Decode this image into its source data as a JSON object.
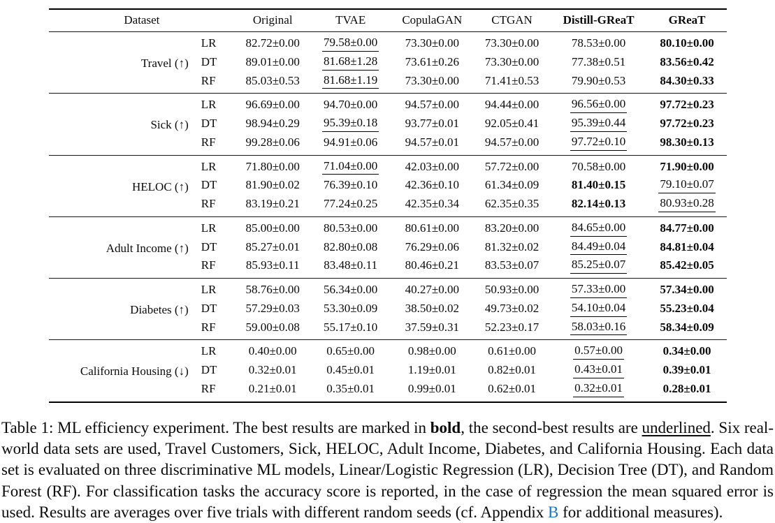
{
  "page": {
    "background": "#ffffff",
    "text_color": "#0a0a0a",
    "link_color": "#1874cd"
  },
  "table": {
    "header": {
      "dataset_label": "Dataset",
      "method_columns": [
        {
          "label": "Original",
          "bold": false
        },
        {
          "label": "TVAE",
          "bold": false
        },
        {
          "label": "CopulaGAN",
          "bold": false
        },
        {
          "label": "CTGAN",
          "bold": false
        },
        {
          "label": "Distill-GReaT",
          "bold": true
        },
        {
          "label": "GReaT",
          "bold": true
        }
      ]
    },
    "groups": [
      {
        "dataset": "Travel (↑)",
        "rows": [
          {
            "model": "LR",
            "values": [
              [
                "82.72±0.00",
                ""
              ],
              [
                "79.58±0.00",
                "u"
              ],
              [
                "73.30±0.00",
                ""
              ],
              [
                "73.30±0.00",
                ""
              ],
              [
                "78.53±0.00",
                ""
              ],
              [
                "80.10±0.00",
                "b"
              ]
            ]
          },
          {
            "model": "DT",
            "values": [
              [
                "89.01±0.00",
                ""
              ],
              [
                "81.68±1.28",
                "u"
              ],
              [
                "73.61±0.26",
                ""
              ],
              [
                "73.30±0.00",
                ""
              ],
              [
                "77.38±0.51",
                ""
              ],
              [
                "83.56±0.42",
                "b"
              ]
            ]
          },
          {
            "model": "RF",
            "values": [
              [
                "85.03±0.53",
                ""
              ],
              [
                "81.68±1.19",
                "u"
              ],
              [
                "73.30±0.00",
                ""
              ],
              [
                "71.41±0.53",
                ""
              ],
              [
                "79.90±0.53",
                ""
              ],
              [
                "84.30±0.33",
                "b"
              ]
            ]
          }
        ]
      },
      {
        "dataset": "Sick (↑)",
        "rows": [
          {
            "model": "LR",
            "values": [
              [
                "96.69±0.00",
                ""
              ],
              [
                "94.70±0.00",
                ""
              ],
              [
                "94.57±0.00",
                ""
              ],
              [
                "94.44±0.00",
                ""
              ],
              [
                "96.56±0.00",
                "u"
              ],
              [
                "97.72±0.23",
                "b"
              ]
            ]
          },
          {
            "model": "DT",
            "values": [
              [
                "98.94±0.29",
                ""
              ],
              [
                "95.39±0.18",
                "u"
              ],
              [
                "93.77±0.01",
                ""
              ],
              [
                "92.05±0.41",
                ""
              ],
              [
                "95.39±0.44",
                "u"
              ],
              [
                "97.72±0.23",
                "b"
              ]
            ]
          },
          {
            "model": "RF",
            "values": [
              [
                "99.28±0.06",
                ""
              ],
              [
                "94.91±0.06",
                ""
              ],
              [
                "94.57±0.01",
                ""
              ],
              [
                "94.57±0.00",
                ""
              ],
              [
                "97.72±0.10",
                "u"
              ],
              [
                "98.30±0.13",
                "b"
              ]
            ]
          }
        ]
      },
      {
        "dataset": "HELOC (↑)",
        "rows": [
          {
            "model": "LR",
            "values": [
              [
                "71.80±0.00",
                ""
              ],
              [
                "71.04±0.00",
                "u"
              ],
              [
                "42.03±0.00",
                ""
              ],
              [
                "57.72±0.00",
                ""
              ],
              [
                "70.58±0.00",
                ""
              ],
              [
                "71.90±0.00",
                "b"
              ]
            ]
          },
          {
            "model": "DT",
            "values": [
              [
                "81.90±0.02",
                ""
              ],
              [
                "76.39±0.10",
                ""
              ],
              [
                "42.36±0.10",
                ""
              ],
              [
                "61.34±0.09",
                ""
              ],
              [
                "81.40±0.15",
                "b"
              ],
              [
                "79.10±0.07",
                "u"
              ]
            ]
          },
          {
            "model": "RF",
            "values": [
              [
                "83.19±0.21",
                ""
              ],
              [
                "77.24±0.25",
                ""
              ],
              [
                "42.35±0.34",
                ""
              ],
              [
                "62.35±0.35",
                ""
              ],
              [
                "82.14±0.13",
                "b"
              ],
              [
                "80.93±0.28",
                "u"
              ]
            ]
          }
        ]
      },
      {
        "dataset": "Adult Income (↑)",
        "rows": [
          {
            "model": "LR",
            "values": [
              [
                "85.00±0.00",
                ""
              ],
              [
                "80.53±0.00",
                ""
              ],
              [
                "80.61±0.00",
                ""
              ],
              [
                "83.20±0.00",
                ""
              ],
              [
                "84.65±0.00",
                "u"
              ],
              [
                "84.77±0.00",
                "b"
              ]
            ]
          },
          {
            "model": "DT",
            "values": [
              [
                "85.27±0.01",
                ""
              ],
              [
                "82.80±0.08",
                ""
              ],
              [
                "76.29±0.06",
                ""
              ],
              [
                "81.32±0.02",
                ""
              ],
              [
                "84.49±0.04",
                "u"
              ],
              [
                "84.81±0.04",
                "b"
              ]
            ]
          },
          {
            "model": "RF",
            "values": [
              [
                "85.93±0.11",
                ""
              ],
              [
                "83.48±0.11",
                ""
              ],
              [
                "80.46±0.21",
                ""
              ],
              [
                "83.53±0.07",
                ""
              ],
              [
                "85.25±0.07",
                "u"
              ],
              [
                "85.42±0.05",
                "b"
              ]
            ]
          }
        ]
      },
      {
        "dataset": "Diabetes (↑)",
        "rows": [
          {
            "model": "LR",
            "values": [
              [
                "58.76±0.00",
                ""
              ],
              [
                "56.34±0.00",
                ""
              ],
              [
                "40.27±0.00",
                ""
              ],
              [
                "50.93±0.00",
                ""
              ],
              [
                "57.33±0.00",
                "u"
              ],
              [
                "57.34±0.00",
                "b"
              ]
            ]
          },
          {
            "model": "DT",
            "values": [
              [
                "57.29±0.03",
                ""
              ],
              [
                "53.30±0.09",
                ""
              ],
              [
                "38.50±0.02",
                ""
              ],
              [
                "49.73±0.02",
                ""
              ],
              [
                "54.10±0.04",
                "u"
              ],
              [
                "55.23±0.04",
                "b"
              ]
            ]
          },
          {
            "model": "RF",
            "values": [
              [
                "59.00±0.08",
                ""
              ],
              [
                "55.17±0.10",
                ""
              ],
              [
                "37.59±0.31",
                ""
              ],
              [
                "52.23±0.17",
                ""
              ],
              [
                "58.03±0.16",
                "u"
              ],
              [
                "58.34±0.09",
                "b"
              ]
            ]
          }
        ]
      },
      {
        "dataset": "California Housing (↓)",
        "rows": [
          {
            "model": "LR",
            "values": [
              [
                "0.40±0.00",
                ""
              ],
              [
                "0.65±0.00",
                ""
              ],
              [
                "0.98±0.00",
                ""
              ],
              [
                "0.61±0.00",
                ""
              ],
              [
                "0.57±0.00",
                "u"
              ],
              [
                "0.34±0.00",
                "b"
              ]
            ]
          },
          {
            "model": "DT",
            "values": [
              [
                "0.32±0.01",
                ""
              ],
              [
                "0.45±0.01",
                ""
              ],
              [
                "1.19±0.01",
                ""
              ],
              [
                "0.82±0.01",
                ""
              ],
              [
                "0.43±0.01",
                "u"
              ],
              [
                "0.39±0.01",
                "b"
              ]
            ]
          },
          {
            "model": "RF",
            "values": [
              [
                "0.21±0.01",
                ""
              ],
              [
                "0.35±0.01",
                ""
              ],
              [
                "0.99±0.01",
                ""
              ],
              [
                "0.62±0.01",
                ""
              ],
              [
                "0.32±0.01",
                "u"
              ],
              [
                "0.28±0.01",
                "b"
              ]
            ]
          }
        ]
      }
    ]
  },
  "caption": {
    "segments": [
      {
        "t": "Table 1: ML efficiency experiment. The best results are marked in ",
        "s": ""
      },
      {
        "t": "bold",
        "s": "bold"
      },
      {
        "t": ", the second-best results are ",
        "s": ""
      },
      {
        "t": "underlined",
        "s": "underline"
      },
      {
        "t": ". Six real-world data sets are used, Travel Customers, Sick, HELOC, Adult Income, Diabetes, and California Housing. Each data set is evaluated on three discriminative ML models, Linear/Logistic Regression (LR), Decision Tree (DT), and Random Forest (RF). For classification tasks the accuracy score is reported, in the case of regression the mean squared error is used. Results are averages over five trials with different random seeds (cf. Appendix ",
        "s": ""
      },
      {
        "t": "B",
        "s": "link"
      },
      {
        "t": " for additional measures).",
        "s": ""
      }
    ]
  }
}
